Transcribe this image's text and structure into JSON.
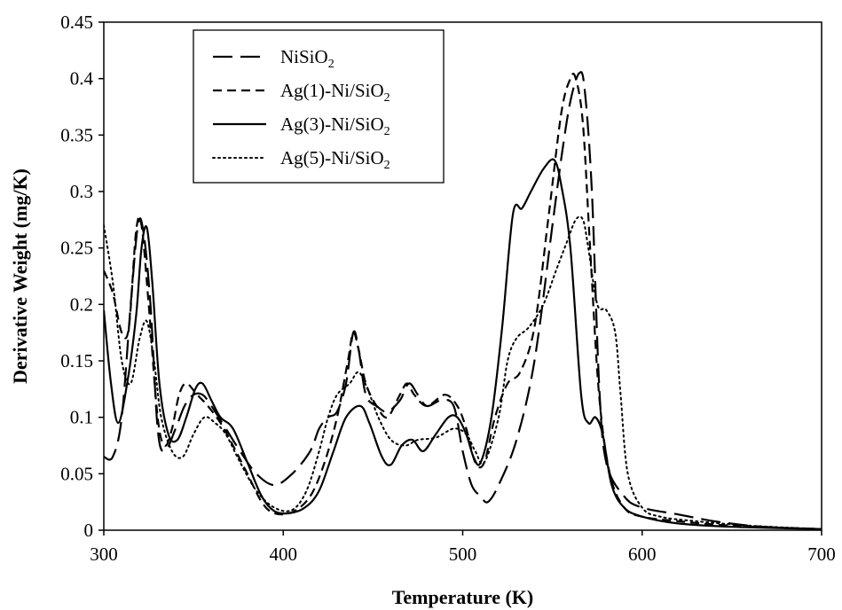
{
  "chart_data": {
    "type": "line",
    "title": "",
    "xlabel": "Temperature (K)",
    "ylabel": "Derivative Weight (mg/K)",
    "xlim": [
      300,
      700
    ],
    "ylim": [
      0,
      0.45
    ],
    "xticks": [
      300,
      400,
      500,
      600,
      700
    ],
    "yticks": [
      0,
      0.05,
      0.1,
      0.15,
      0.2,
      0.25,
      0.3,
      0.35,
      0.4,
      0.45
    ],
    "ytick_labels": [
      "0",
      "0.05",
      "0.1",
      "0.15",
      "0.2",
      "0.25",
      "0.3",
      "0.35",
      "0.4",
      "0.45"
    ],
    "xtick_labels": [
      "300",
      "400",
      "500",
      "600",
      "700"
    ],
    "grid": false,
    "legend_position": "top-left",
    "series": [
      {
        "name": "NiSiO2",
        "label_main": "NiSiO",
        "label_sub": "2",
        "label_tail": "",
        "style": "longdash",
        "points": [
          [
            300,
            0.065
          ],
          [
            305,
            0.065
          ],
          [
            310,
            0.1
          ],
          [
            315,
            0.2
          ],
          [
            319,
            0.27
          ],
          [
            322,
            0.265
          ],
          [
            326,
            0.2
          ],
          [
            330,
            0.09
          ],
          [
            334,
            0.07
          ],
          [
            340,
            0.09
          ],
          [
            345,
            0.11
          ],
          [
            350,
            0.12
          ],
          [
            355,
            0.12
          ],
          [
            360,
            0.11
          ],
          [
            368,
            0.09
          ],
          [
            376,
            0.07
          ],
          [
            385,
            0.05
          ],
          [
            395,
            0.04
          ],
          [
            405,
            0.05
          ],
          [
            415,
            0.07
          ],
          [
            420,
            0.09
          ],
          [
            425,
            0.1
          ],
          [
            430,
            0.105
          ],
          [
            435,
            0.13
          ],
          [
            439,
            0.175
          ],
          [
            442,
            0.16
          ],
          [
            446,
            0.12
          ],
          [
            452,
            0.11
          ],
          [
            458,
            0.105
          ],
          [
            465,
            0.115
          ],
          [
            470,
            0.13
          ],
          [
            475,
            0.12
          ],
          [
            480,
            0.11
          ],
          [
            488,
            0.115
          ],
          [
            495,
            0.11
          ],
          [
            500,
            0.07
          ],
          [
            505,
            0.04
          ],
          [
            510,
            0.03
          ],
          [
            514,
            0.025
          ],
          [
            520,
            0.04
          ],
          [
            530,
            0.08
          ],
          [
            540,
            0.15
          ],
          [
            550,
            0.27
          ],
          [
            555,
            0.33
          ],
          [
            560,
            0.38
          ],
          [
            565,
            0.405
          ],
          [
            568,
            0.39
          ],
          [
            572,
            0.3
          ],
          [
            576,
            0.13
          ],
          [
            580,
            0.06
          ],
          [
            590,
            0.03
          ],
          [
            600,
            0.02
          ],
          [
            620,
            0.014
          ],
          [
            640,
            0.008
          ],
          [
            660,
            0.004
          ],
          [
            680,
            0.002
          ],
          [
            700,
            0.001
          ]
        ]
      },
      {
        "name": "Ag(1)-Ni/SiO2",
        "label_main": "Ag(1)-Ni/SiO",
        "label_sub": "2",
        "label_tail": "",
        "style": "dash",
        "points": [
          [
            300,
            0.23
          ],
          [
            305,
            0.21
          ],
          [
            310,
            0.175
          ],
          [
            314,
            0.18
          ],
          [
            318,
            0.265
          ],
          [
            321,
            0.27
          ],
          [
            325,
            0.2
          ],
          [
            330,
            0.1
          ],
          [
            334,
            0.075
          ],
          [
            338,
            0.09
          ],
          [
            342,
            0.12
          ],
          [
            346,
            0.13
          ],
          [
            352,
            0.12
          ],
          [
            358,
            0.11
          ],
          [
            365,
            0.095
          ],
          [
            372,
            0.075
          ],
          [
            380,
            0.05
          ],
          [
            388,
            0.025
          ],
          [
            395,
            0.015
          ],
          [
            405,
            0.016
          ],
          [
            415,
            0.03
          ],
          [
            423,
            0.06
          ],
          [
            430,
            0.1
          ],
          [
            436,
            0.15
          ],
          [
            439,
            0.175
          ],
          [
            442,
            0.16
          ],
          [
            446,
            0.13
          ],
          [
            452,
            0.11
          ],
          [
            458,
            0.1
          ],
          [
            465,
            0.12
          ],
          [
            469,
            0.13
          ],
          [
            473,
            0.12
          ],
          [
            480,
            0.11
          ],
          [
            490,
            0.12
          ],
          [
            497,
            0.11
          ],
          [
            502,
            0.09
          ],
          [
            507,
            0.06
          ],
          [
            512,
            0.06
          ],
          [
            518,
            0.1
          ],
          [
            525,
            0.13
          ],
          [
            532,
            0.14
          ],
          [
            540,
            0.18
          ],
          [
            548,
            0.28
          ],
          [
            555,
            0.37
          ],
          [
            560,
            0.4
          ],
          [
            563,
            0.4
          ],
          [
            567,
            0.36
          ],
          [
            571,
            0.25
          ],
          [
            576,
            0.12
          ],
          [
            582,
            0.05
          ],
          [
            590,
            0.02
          ],
          [
            600,
            0.012
          ],
          [
            620,
            0.008
          ],
          [
            650,
            0.004
          ],
          [
            700,
            0.001
          ]
        ]
      },
      {
        "name": "Ag(3)-Ni/SiO2",
        "label_main": "Ag(3)-Ni/SiO",
        "label_sub": "2",
        "label_tail": "",
        "style": "solid",
        "points": [
          [
            300,
            0.195
          ],
          [
            304,
            0.13
          ],
          [
            308,
            0.095
          ],
          [
            313,
            0.13
          ],
          [
            318,
            0.19
          ],
          [
            321,
            0.25
          ],
          [
            324,
            0.268
          ],
          [
            327,
            0.22
          ],
          [
            331,
            0.13
          ],
          [
            336,
            0.085
          ],
          [
            341,
            0.08
          ],
          [
            346,
            0.1
          ],
          [
            351,
            0.125
          ],
          [
            355,
            0.13
          ],
          [
            360,
            0.115
          ],
          [
            365,
            0.1
          ],
          [
            372,
            0.09
          ],
          [
            380,
            0.06
          ],
          [
            388,
            0.03
          ],
          [
            395,
            0.017
          ],
          [
            403,
            0.015
          ],
          [
            412,
            0.02
          ],
          [
            420,
            0.035
          ],
          [
            428,
            0.07
          ],
          [
            435,
            0.1
          ],
          [
            443,
            0.11
          ],
          [
            448,
            0.095
          ],
          [
            455,
            0.065
          ],
          [
            460,
            0.058
          ],
          [
            466,
            0.075
          ],
          [
            472,
            0.08
          ],
          [
            478,
            0.07
          ],
          [
            485,
            0.085
          ],
          [
            492,
            0.1
          ],
          [
            497,
            0.1
          ],
          [
            502,
            0.085
          ],
          [
            506,
            0.065
          ],
          [
            510,
            0.06
          ],
          [
            516,
            0.1
          ],
          [
            522,
            0.18
          ],
          [
            528,
            0.28
          ],
          [
            533,
            0.285
          ],
          [
            538,
            0.3
          ],
          [
            545,
            0.32
          ],
          [
            551,
            0.328
          ],
          [
            555,
            0.305
          ],
          [
            560,
            0.25
          ],
          [
            566,
            0.12
          ],
          [
            570,
            0.095
          ],
          [
            574,
            0.1
          ],
          [
            578,
            0.085
          ],
          [
            583,
            0.04
          ],
          [
            590,
            0.02
          ],
          [
            600,
            0.012
          ],
          [
            620,
            0.006
          ],
          [
            650,
            0.003
          ],
          [
            700,
            0.001
          ]
        ]
      },
      {
        "name": "Ag(5)-Ni/SiO2",
        "label_main": "Ag(5)-Ni/SiO",
        "label_sub": "2",
        "label_tail": "",
        "style": "dot",
        "points": [
          [
            300,
            0.27
          ],
          [
            305,
            0.22
          ],
          [
            310,
            0.15
          ],
          [
            315,
            0.13
          ],
          [
            320,
            0.17
          ],
          [
            324,
            0.185
          ],
          [
            328,
            0.15
          ],
          [
            332,
            0.1
          ],
          [
            338,
            0.07
          ],
          [
            344,
            0.065
          ],
          [
            350,
            0.085
          ],
          [
            356,
            0.1
          ],
          [
            362,
            0.095
          ],
          [
            368,
            0.085
          ],
          [
            376,
            0.06
          ],
          [
            385,
            0.035
          ],
          [
            395,
            0.02
          ],
          [
            405,
            0.018
          ],
          [
            413,
            0.035
          ],
          [
            420,
            0.07
          ],
          [
            425,
            0.1
          ],
          [
            430,
            0.12
          ],
          [
            437,
            0.13
          ],
          [
            442,
            0.14
          ],
          [
            447,
            0.125
          ],
          [
            453,
            0.1
          ],
          [
            460,
            0.08
          ],
          [
            468,
            0.075
          ],
          [
            475,
            0.08
          ],
          [
            485,
            0.082
          ],
          [
            495,
            0.09
          ],
          [
            502,
            0.085
          ],
          [
            507,
            0.07
          ],
          [
            512,
            0.06
          ],
          [
            520,
            0.1
          ],
          [
            525,
            0.15
          ],
          [
            530,
            0.17
          ],
          [
            537,
            0.18
          ],
          [
            545,
            0.2
          ],
          [
            552,
            0.23
          ],
          [
            558,
            0.255
          ],
          [
            563,
            0.275
          ],
          [
            567,
            0.275
          ],
          [
            570,
            0.25
          ],
          [
            575,
            0.2
          ],
          [
            580,
            0.195
          ],
          [
            585,
            0.175
          ],
          [
            588,
            0.12
          ],
          [
            592,
            0.05
          ],
          [
            600,
            0.02
          ],
          [
            610,
            0.012
          ],
          [
            630,
            0.008
          ],
          [
            660,
            0.004
          ],
          [
            700,
            0.001
          ]
        ]
      }
    ]
  }
}
